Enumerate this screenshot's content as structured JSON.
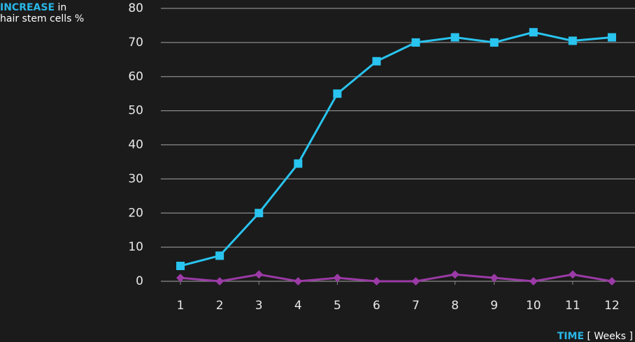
{
  "chart_data": {
    "type": "line",
    "title_highlight": "INCREASE",
    "title_rest": "in",
    "title_line2": "hair stem cells %",
    "xlabel_highlight": "TIME",
    "xlabel_rest": "[ Weeks ]",
    "x": [
      1,
      2,
      3,
      4,
      5,
      6,
      7,
      8,
      9,
      10,
      11,
      12
    ],
    "xlim": [
      0.5,
      12.5
    ],
    "xticks": [
      1,
      2,
      3,
      4,
      5,
      6,
      7,
      8,
      9,
      10,
      11,
      12
    ],
    "ylim": [
      0,
      80
    ],
    "yticks": [
      0,
      10,
      20,
      30,
      40,
      50,
      60,
      70,
      80
    ],
    "grid": true,
    "series": [
      {
        "color": "#29c4ef",
        "marker": "square",
        "values": [
          4.5,
          7.5,
          20,
          34.5,
          55,
          64.5,
          70,
          71.5,
          70,
          73,
          70.5,
          71.5
        ]
      },
      {
        "color": "#9b3aa6",
        "marker": "diamond",
        "values": [
          1,
          0,
          2,
          0,
          1,
          0,
          0,
          2,
          1,
          0,
          2,
          0
        ]
      }
    ]
  }
}
